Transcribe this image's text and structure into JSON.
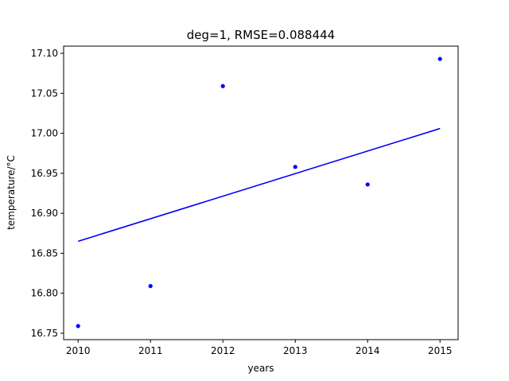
{
  "chart_data": {
    "type": "scatter",
    "title": "deg=1, RMSE=0.088444",
    "xlabel": "years",
    "ylabel": "temperature/°C",
    "xlim": [
      2009.8,
      2015.25
    ],
    "ylim": [
      16.742,
      17.109
    ],
    "x_ticks": [
      2010,
      2011,
      2012,
      2013,
      2014,
      2015
    ],
    "x_tick_labels": [
      "2010",
      "2011",
      "2012",
      "2013",
      "2014",
      "2015"
    ],
    "y_ticks": [
      16.75,
      16.8,
      16.85,
      16.9,
      16.95,
      17.0,
      17.05,
      17.1
    ],
    "y_tick_labels": [
      "16.75",
      "16.80",
      "16.85",
      "16.90",
      "16.95",
      "17.00",
      "17.05",
      "17.10"
    ],
    "grid": false,
    "legend": "none",
    "series": [
      {
        "kind": "points",
        "color": "#0000ff",
        "x": [
          2010,
          2011,
          2012,
          2013,
          2014,
          2015
        ],
        "y": [
          16.759,
          16.809,
          17.059,
          16.958,
          16.936,
          17.093
        ]
      },
      {
        "kind": "line",
        "color": "#0000ff",
        "x": [
          2010,
          2015
        ],
        "y": [
          16.865,
          17.006
        ]
      }
    ]
  }
}
